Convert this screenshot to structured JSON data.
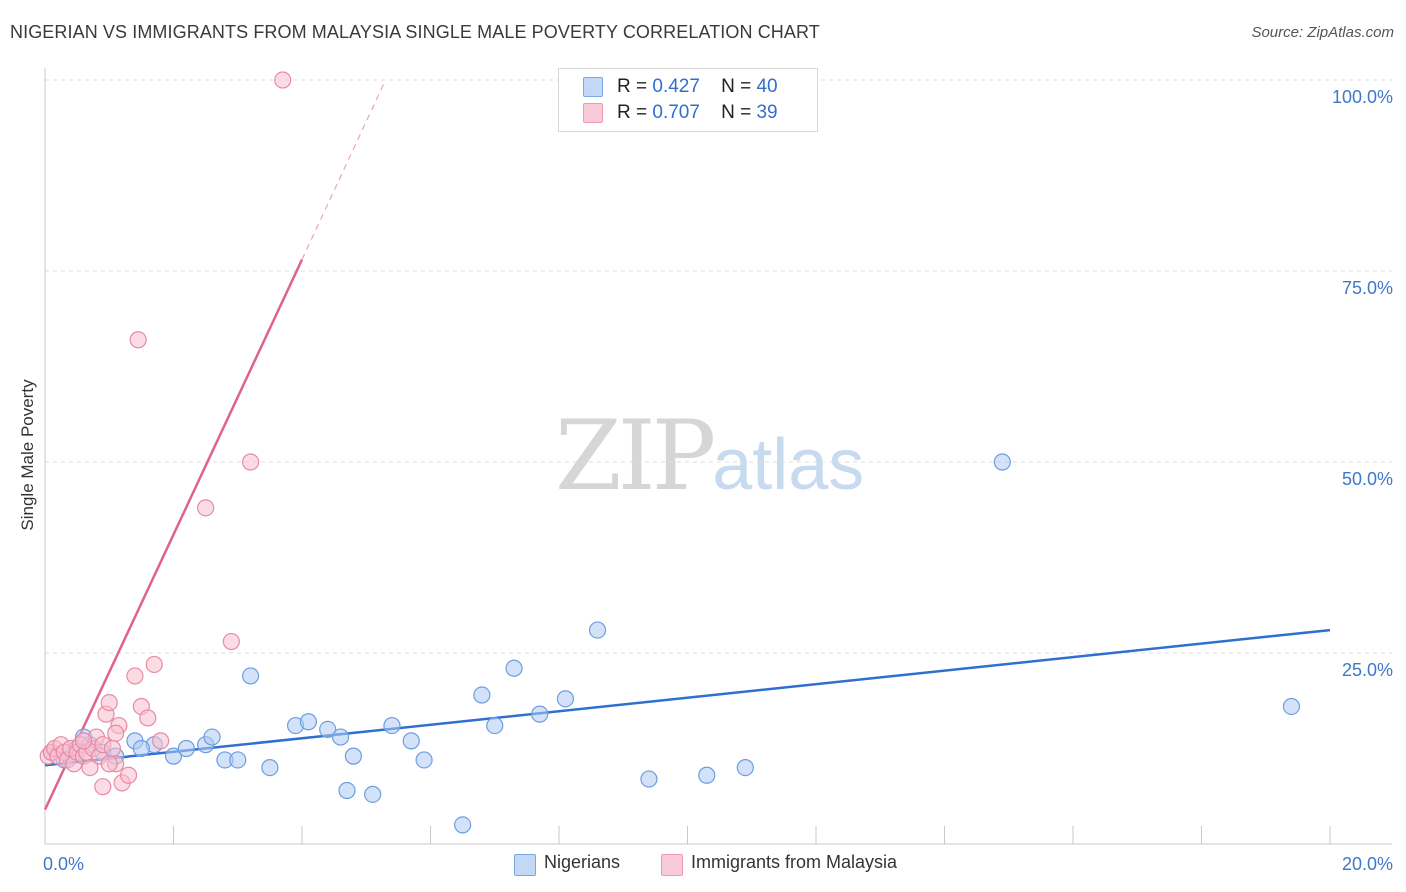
{
  "title": "NIGERIAN VS IMMIGRANTS FROM MALAYSIA SINGLE MALE POVERTY CORRELATION CHART",
  "source": "Source: ZipAtlas.com",
  "watermark": {
    "zip": "ZIP",
    "atlas": "atlas"
  },
  "legend": {
    "series": [
      {
        "r_label": "R =",
        "r_value": "0.427",
        "n_label": "N =",
        "n_value": "40"
      },
      {
        "r_label": "R =",
        "r_value": "0.707",
        "n_label": "N =",
        "n_value": "39"
      }
    ],
    "bottom": [
      "Nigerians",
      "Immigrants from Malaysia"
    ]
  },
  "colors": {
    "nigerians_fill": "#aecbf2",
    "nigerians_stroke": "#6a9fe0",
    "nigerians_line": "#2f6fd0",
    "malaysia_fill": "#f7c0d0",
    "malaysia_stroke": "#e88aa6",
    "malaysia_line": "#e0628f",
    "axis_text": "#3f78c8",
    "grid": "#dddddd"
  },
  "chart_data": {
    "type": "scatter",
    "title": "NIGERIAN VS IMMIGRANTS FROM MALAYSIA SINGLE MALE POVERTY CORRELATION CHART",
    "xlabel": "",
    "ylabel": "Single Male Poverty",
    "xlim": [
      0,
      20
    ],
    "ylim": [
      0,
      100
    ],
    "x_tick_labels": [
      "0.0%",
      "20.0%"
    ],
    "y_tick_values": [
      25,
      50,
      75,
      100
    ],
    "y_tick_labels": [
      "25.0%",
      "50.0%",
      "75.0%",
      "100.0%"
    ],
    "series": [
      {
        "name": "Nigerians",
        "r": 0.427,
        "n": 40,
        "trend": {
          "x": [
            0,
            20
          ],
          "y": [
            10.3,
            28.0
          ]
        },
        "points": [
          [
            0.1,
            12.0
          ],
          [
            0.3,
            11.0
          ],
          [
            0.5,
            12.5
          ],
          [
            0.7,
            13.0
          ],
          [
            0.9,
            12.0
          ],
          [
            1.1,
            11.5
          ],
          [
            1.4,
            13.5
          ],
          [
            1.7,
            13.0
          ],
          [
            2.0,
            11.5
          ],
          [
            2.2,
            12.5
          ],
          [
            2.5,
            13.0
          ],
          [
            2.6,
            14.0
          ],
          [
            2.8,
            11.0
          ],
          [
            3.0,
            11.0
          ],
          [
            3.2,
            22.0
          ],
          [
            3.5,
            10.0
          ],
          [
            3.9,
            15.5
          ],
          [
            4.1,
            16.0
          ],
          [
            4.4,
            15.0
          ],
          [
            4.6,
            14.0
          ],
          [
            4.7,
            7.0
          ],
          [
            4.8,
            11.5
          ],
          [
            5.1,
            6.5
          ],
          [
            5.4,
            15.5
          ],
          [
            5.7,
            13.5
          ],
          [
            5.9,
            11.0
          ],
          [
            6.5,
            2.5
          ],
          [
            6.8,
            19.5
          ],
          [
            7.0,
            15.5
          ],
          [
            7.3,
            23.0
          ],
          [
            7.7,
            17.0
          ],
          [
            8.1,
            19.0
          ],
          [
            8.6,
            28.0
          ],
          [
            9.4,
            8.5
          ],
          [
            10.3,
            9.0
          ],
          [
            10.9,
            10.0
          ],
          [
            14.9,
            50.0
          ],
          [
            19.4,
            18.0
          ],
          [
            0.6,
            14.0
          ],
          [
            1.5,
            12.5
          ]
        ]
      },
      {
        "name": "Immigrants from Malaysia",
        "r": 0.707,
        "n": 39,
        "trend": {
          "x": [
            0,
            4.0
          ],
          "y": [
            4.5,
            76.5
          ]
        },
        "trend_dashed": {
          "x": [
            4.0,
            5.3
          ],
          "y": [
            76.5,
            100.0
          ]
        },
        "points": [
          [
            0.05,
            11.5
          ],
          [
            0.1,
            12.0
          ],
          [
            0.15,
            12.5
          ],
          [
            0.2,
            11.5
          ],
          [
            0.25,
            13.0
          ],
          [
            0.3,
            12.0
          ],
          [
            0.35,
            11.0
          ],
          [
            0.4,
            12.5
          ],
          [
            0.45,
            10.5
          ],
          [
            0.5,
            12.0
          ],
          [
            0.55,
            13.0
          ],
          [
            0.6,
            11.5
          ],
          [
            0.65,
            12.0
          ],
          [
            0.7,
            10.0
          ],
          [
            0.75,
            12.5
          ],
          [
            0.8,
            14.0
          ],
          [
            0.85,
            11.5
          ],
          [
            0.9,
            13.0
          ],
          [
            0.9,
            7.5
          ],
          [
            0.95,
            17.0
          ],
          [
            1.0,
            18.5
          ],
          [
            1.05,
            12.5
          ],
          [
            1.1,
            10.5
          ],
          [
            1.15,
            15.5
          ],
          [
            1.2,
            8.0
          ],
          [
            1.3,
            9.0
          ],
          [
            1.4,
            22.0
          ],
          [
            1.1,
            14.5
          ],
          [
            1.0,
            10.5
          ],
          [
            1.5,
            18.0
          ],
          [
            1.6,
            16.5
          ],
          [
            1.7,
            23.5
          ],
          [
            1.8,
            13.5
          ],
          [
            2.9,
            26.5
          ],
          [
            2.5,
            44.0
          ],
          [
            1.45,
            66.0
          ],
          [
            3.2,
            50.0
          ],
          [
            3.7,
            100.0
          ],
          [
            0.6,
            13.5
          ]
        ]
      }
    ]
  }
}
